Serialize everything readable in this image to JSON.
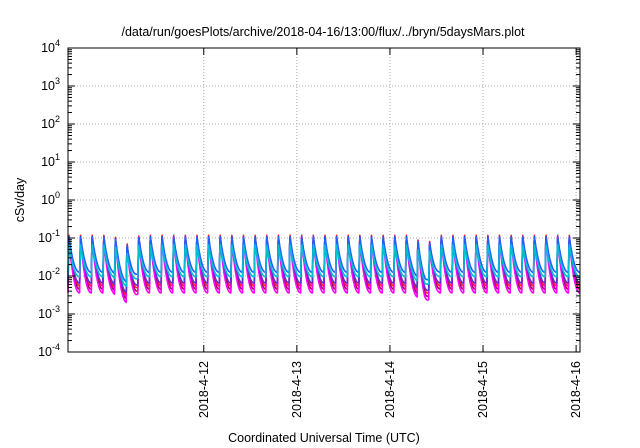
{
  "chart_data": {
    "type": "line",
    "title": "/data/run/goesPlots/archive/2018-04-16/13:00/flux/../bryn/5daysMars.plot",
    "xlabel": "Coordinated Universal Time (UTC)",
    "ylabel": "cSv/day",
    "yscale": "log",
    "ylim": [
      0.0001,
      10000
    ],
    "xlim": [
      "2018-04-11 01:00",
      "2018-04-16 13:00"
    ],
    "grid": true,
    "ytick_labels": [
      {
        "base": "10",
        "exp": "4"
      },
      {
        "base": "10",
        "exp": "3"
      },
      {
        "base": "10",
        "exp": "2"
      },
      {
        "base": "10",
        "exp": "1"
      },
      {
        "base": "10",
        "exp": "0"
      },
      {
        "base": "10",
        "exp": "-1"
      },
      {
        "base": "10",
        "exp": "-2"
      },
      {
        "base": "10",
        "exp": "-3"
      },
      {
        "base": "10",
        "exp": "-4"
      }
    ],
    "xtick_labels": [
      "2018-4-12",
      "2018-4-13",
      "2018-4-14",
      "2018-4-15",
      "2018-4-16"
    ],
    "series_shape": {
      "period_hours": 3,
      "peak_value": 0.12,
      "dip_events": [
        "2018-04-11 16:00",
        "2018-04-14 21:00"
      ]
    },
    "series": [
      {
        "color": "#ff2020",
        "trough": 0.0055,
        "peak": 0.13
      },
      {
        "color": "#a0005a",
        "trough": 0.0045,
        "peak": 0.12
      },
      {
        "color": "#ff00ff",
        "trough": 0.0036,
        "peak": 0.095
      },
      {
        "color": "#6030d0",
        "trough": 0.0065,
        "peak": 0.115
      },
      {
        "color": "#2060ff",
        "trough": 0.0125,
        "peak": 0.115
      },
      {
        "color": "#00c0d0",
        "trough": 0.0095,
        "peak": 0.07
      }
    ]
  }
}
